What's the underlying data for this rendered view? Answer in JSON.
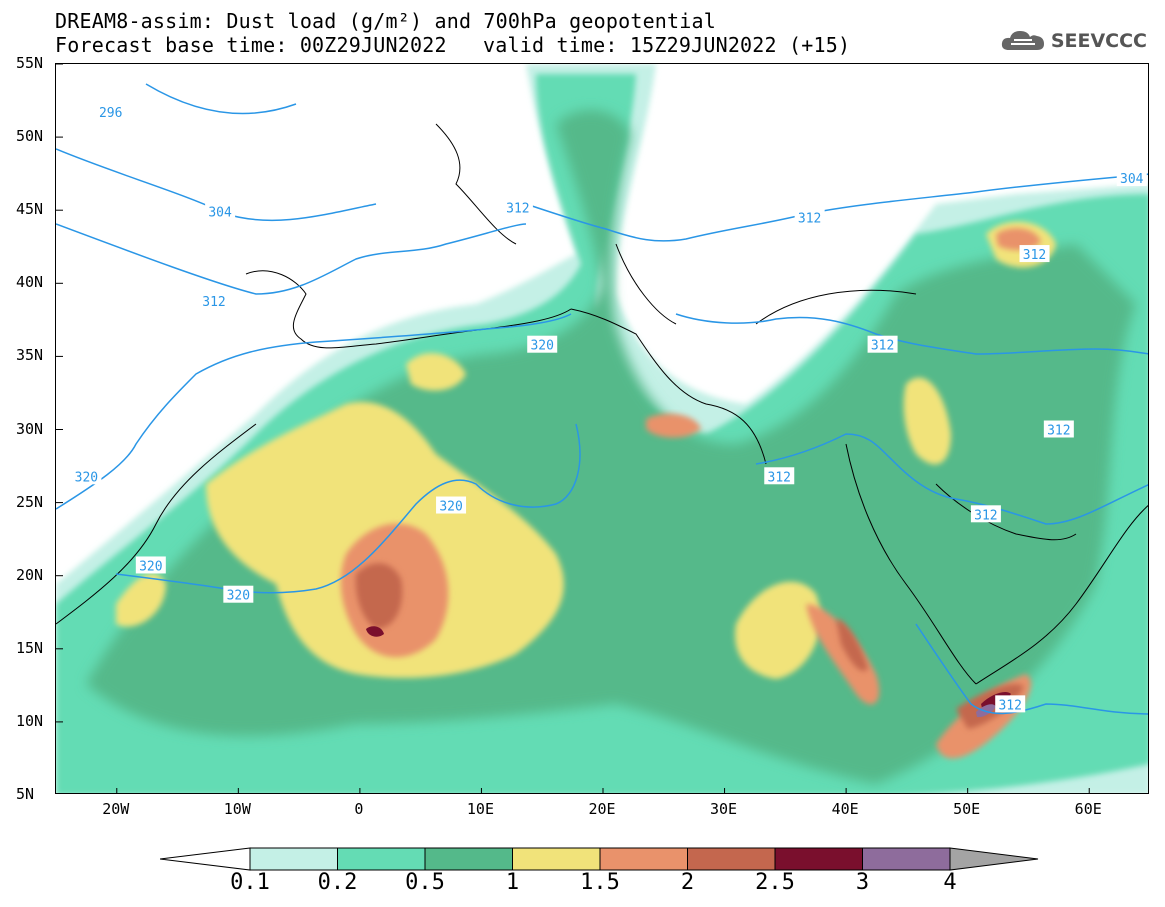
{
  "header": {
    "title_line1": "DREAM8-assim: Dust load (g/m²) and 700hPa geopotential",
    "base_time": "Forecast base time: 00Z29JUN2022",
    "valid_time": "valid time: 15Z29JUN2022 (+15)"
  },
  "logo": {
    "text": "SEEVCCC",
    "icon": "cloud-icon"
  },
  "axes": {
    "lat_labels": [
      "55N",
      "50N",
      "45N",
      "40N",
      "35N",
      "30N",
      "25N",
      "20N",
      "15N",
      "10N",
      "5N"
    ],
    "lon_labels": [
      "20W",
      "10W",
      "0",
      "10E",
      "20E",
      "30E",
      "40E",
      "50E",
      "60E"
    ]
  },
  "contour_labels": [
    {
      "text": "296",
      "lon": -20.5,
      "lat": 51.7
    },
    {
      "text": "304",
      "lon": -11.5,
      "lat": 44.9
    },
    {
      "text": "312",
      "lon": -12,
      "lat": 38.8
    },
    {
      "text": "320",
      "lon": -22.5,
      "lat": 26.8
    },
    {
      "text": "320",
      "lon": -17.2,
      "lat": 20.7
    },
    {
      "text": "320",
      "lon": -10,
      "lat": 18.7
    },
    {
      "text": "320",
      "lon": 7.5,
      "lat": 24.8
    },
    {
      "text": "320",
      "lon": 15,
      "lat": 35.8
    },
    {
      "text": "312",
      "lon": 13,
      "lat": 45.2
    },
    {
      "text": "312",
      "lon": 37,
      "lat": 44.5
    },
    {
      "text": "312",
      "lon": 43,
      "lat": 35.8
    },
    {
      "text": "312",
      "lon": 34.5,
      "lat": 26.8
    },
    {
      "text": "312",
      "lon": 55.5,
      "lat": 42.0
    },
    {
      "text": "312",
      "lon": 57.5,
      "lat": 30.0
    },
    {
      "text": "312",
      "lon": 51.5,
      "lat": 24.2
    },
    {
      "text": "312",
      "lon": 53.5,
      "lat": 11.2
    },
    {
      "text": "304",
      "lon": 63.5,
      "lat": 47.2
    }
  ],
  "colorbar": {
    "labels": [
      "0.1",
      "0.2",
      "0.5",
      "1",
      "1.5",
      "2",
      "2.5",
      "3",
      "4"
    ],
    "colors": [
      "#c4f0e6",
      "#64dcb4",
      "#54b98a",
      "#f1e37a",
      "#e9926b",
      "#c4674e",
      "#7a0f2d",
      "#8e6c9c",
      "#a4a4a4"
    ],
    "under_color": "#ffffff"
  },
  "palette": {
    "contour_line": "#2a96e6",
    "border_line": "#000000"
  },
  "map_extent": {
    "lon_min": -25,
    "lon_max": 65,
    "lat_min": 5,
    "lat_max": 55
  }
}
